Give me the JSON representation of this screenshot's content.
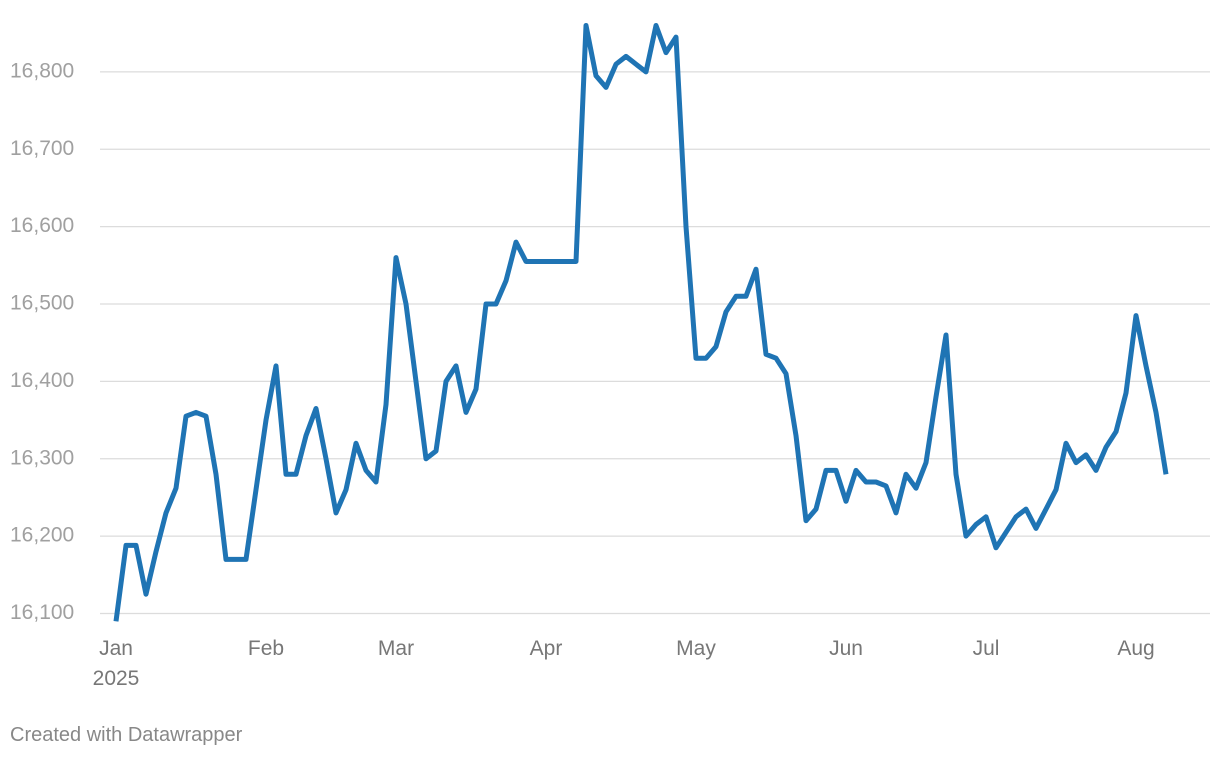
{
  "chart_data": {
    "type": "line",
    "categories": [
      "Jan\n2025",
      null,
      null,
      null,
      null,
      null,
      null,
      null,
      null,
      null,
      null,
      null,
      null,
      null,
      null,
      "Feb",
      null,
      null,
      null,
      null,
      null,
      null,
      null,
      null,
      null,
      null,
      null,
      null,
      "Mar",
      null,
      null,
      null,
      null,
      null,
      null,
      null,
      null,
      null,
      null,
      null,
      null,
      null,
      null,
      "Apr",
      null,
      null,
      null,
      null,
      null,
      null,
      null,
      null,
      null,
      null,
      null,
      null,
      null,
      null,
      "May",
      null,
      null,
      null,
      null,
      null,
      null,
      null,
      null,
      null,
      null,
      null,
      null,
      null,
      null,
      "Jun",
      null,
      null,
      null,
      null,
      null,
      null,
      null,
      null,
      null,
      null,
      null,
      null,
      null,
      "Jul",
      null,
      null,
      null,
      null,
      null,
      null,
      null,
      null,
      null,
      null,
      null,
      null,
      null,
      null,
      "Aug",
      null,
      null,
      null
    ],
    "values": [
      16090,
      16188,
      16188,
      16125,
      16180,
      16230,
      16262,
      16355,
      16360,
      16355,
      16280,
      16170,
      16170,
      16170,
      16260,
      16350,
      16420,
      16280,
      16280,
      16330,
      16365,
      16300,
      16230,
      16260,
      16320,
      16285,
      16270,
      16370,
      16560,
      16500,
      16400,
      16300,
      16310,
      16400,
      16420,
      16360,
      16390,
      16500,
      16500,
      16530,
      16580,
      16555,
      16555,
      16555,
      16555,
      16555,
      16555,
      16860,
      16795,
      16780,
      16810,
      16820,
      16810,
      16800,
      16860,
      16825,
      16845,
      16600,
      16430,
      16430,
      16445,
      16490,
      16510,
      16510,
      16545,
      16435,
      16430,
      16410,
      16330,
      16220,
      16235,
      16285,
      16285,
      16245,
      16285,
      16270,
      16270,
      16265,
      16230,
      16280,
      16262,
      16295,
      16380,
      16460,
      16280,
      16200,
      16215,
      16225,
      16185,
      16205,
      16225,
      16235,
      16210,
      16235,
      16260,
      16320,
      16295,
      16305,
      16285,
      16315,
      16335,
      16385,
      16485,
      16420,
      16360,
      16280
    ],
    "color": "#1f74b4",
    "ylim": [
      16080,
      16880
    ],
    "yticks": [
      {
        "value": 16100,
        "label": "16,100"
      },
      {
        "value": 16200,
        "label": "16,200"
      },
      {
        "value": 16300,
        "label": "16,300"
      },
      {
        "value": 16400,
        "label": "16,400"
      },
      {
        "value": 16500,
        "label": "16,500"
      },
      {
        "value": 16600,
        "label": "16,600"
      },
      {
        "value": 16700,
        "label": "16,700"
      },
      {
        "value": 16800,
        "label": "16,800"
      }
    ],
    "grid": true,
    "footer": "Created with Datawrapper"
  }
}
